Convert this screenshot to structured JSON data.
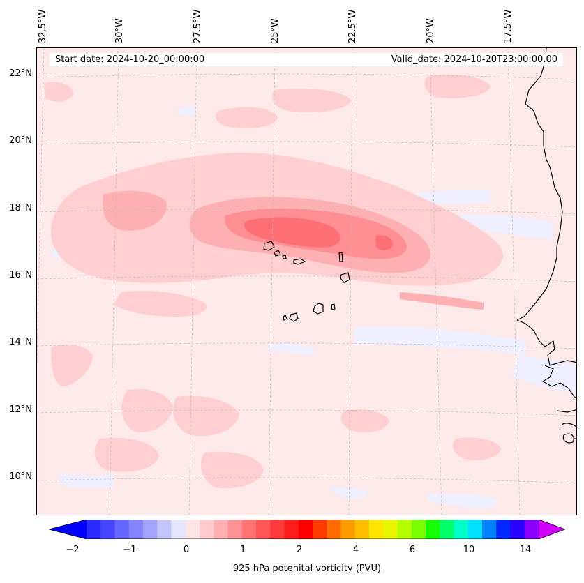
{
  "map": {
    "start_date": "Start date: 2024-10-20_00:00:00",
    "valid_date": "Valid_date: 2024-10-20T23:00:00.00",
    "lon_labels": [
      "32.5°W",
      "30°W",
      "27.5°W",
      "25°W",
      "22.5°W",
      "20°W",
      "17.5°W"
    ],
    "lat_labels": [
      "22°N",
      "20°N",
      "18°N",
      "16°N",
      "14°N",
      "12°N",
      "10°N"
    ]
  },
  "colorbar": {
    "label": "925 hPa potenital vorticity (PVU)",
    "ticks": [
      "−2",
      "−1",
      "0",
      "1",
      "2",
      "4",
      "6",
      "10",
      "14"
    ],
    "colors": [
      "#2a2aff",
      "#4646ff",
      "#6565ff",
      "#8484ff",
      "#a4a4ff",
      "#c4c4ff",
      "#e6e6ff",
      "#ffe4e6",
      "#ffcbcf",
      "#ffb0b2",
      "#ff9294",
      "#ff7373",
      "#ff5555",
      "#ff3a3a",
      "#ff1c1c",
      "#ff0000",
      "#ff3a00",
      "#ff6b00",
      "#ff9c00",
      "#ffbe00",
      "#ffe600",
      "#e7f500",
      "#b6ff00",
      "#7aff00",
      "#14ff00",
      "#00ff6a",
      "#00ffc8",
      "#00e0ff",
      "#0082ff",
      "#0028ff",
      "#2a00ff",
      "#8a00ff"
    ],
    "under_color": "#0000ff",
    "over_color": "#d000ff"
  }
}
